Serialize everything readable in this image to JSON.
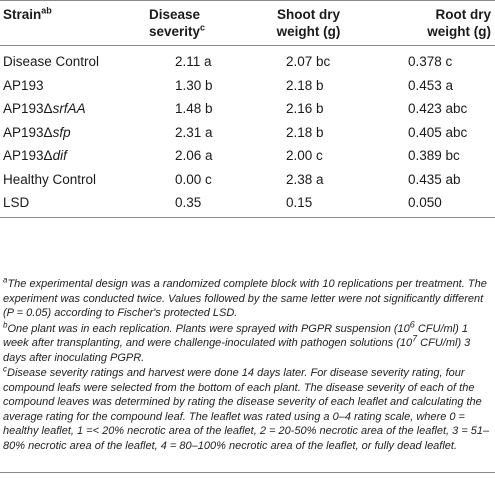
{
  "table": {
    "headers": {
      "strain": "Strain",
      "strain_sup": "ab",
      "disease_line1": "Disease",
      "disease_line2": "severity",
      "disease_sup": "c",
      "shoot_line1": "Shoot dry",
      "shoot_line2": "weight (g)",
      "root_line1": "Root dry",
      "root_line2": "weight (g)"
    },
    "rows": [
      {
        "strain": "Disease Control",
        "strain_suffix": "",
        "disease": "2.11 a",
        "shoot": "2.07 bc",
        "root": "0.378 c"
      },
      {
        "strain": "AP193",
        "strain_suffix": "",
        "disease": "1.30 b",
        "shoot": "2.18 b",
        "root": "0.453 a"
      },
      {
        "strain": "AP193Δ",
        "strain_suffix": "srfAA",
        "disease": "1.48 b",
        "shoot": "2.16 b",
        "root": "0.423 abc"
      },
      {
        "strain": "AP193Δ",
        "strain_suffix": "sfp",
        "disease": "2.31 a",
        "shoot": "2.18 b",
        "root": "0.405 abc"
      },
      {
        "strain": "AP193Δ",
        "strain_suffix": "dif",
        "disease": "2.06 a",
        "shoot": "2.00 c",
        "root": "0.389 bc"
      },
      {
        "strain": "Healthy Control",
        "strain_suffix": "",
        "disease": "0.00 c",
        "shoot": "2.38 a",
        "root": "0.435 ab"
      },
      {
        "strain": "LSD",
        "strain_suffix": "",
        "disease": "0.35",
        "shoot": "0.15",
        "root": "0.050"
      }
    ]
  },
  "footnotes": {
    "a_mark": "a",
    "a_text": "The experimental design was a randomized complete block with 10 replications per treatment. The experiment was conducted twice. Values followed by the same letter were not significantly different (P = 0.05) according to Fischer's protected LSD.",
    "b_mark": "b",
    "b_text_1": "One plant was in each replication. Plants were sprayed with PGPR suspension (10",
    "b_exp_1": "6",
    "b_text_2": " CFU/ml) 1 week after transplanting, and were challenge-inoculated with pathogen solutions (10",
    "b_exp_2": "7",
    "b_text_3": " CFU/ml) 3 days after inoculating PGPR.",
    "c_mark": "c",
    "c_text": "Disease severity ratings and harvest were done 14 days later. For disease severity rating, four compound leafs were selected from the bottom of each plant. The disease severity of each of the compound leaves was determined by rating the disease severity of each leaflet and calculating the average rating for the compound leaf. The leaflet was rated using a 0–4 rating scale, where 0 = healthy leaflet, 1 =< 20% necrotic area of the leaflet, 2 = 20-50% necrotic area of the leaflet, 3 = 51–80% necrotic area of the leaflet, 4 = 80–100% necrotic area of the leaflet, or fully dead leaflet."
  }
}
